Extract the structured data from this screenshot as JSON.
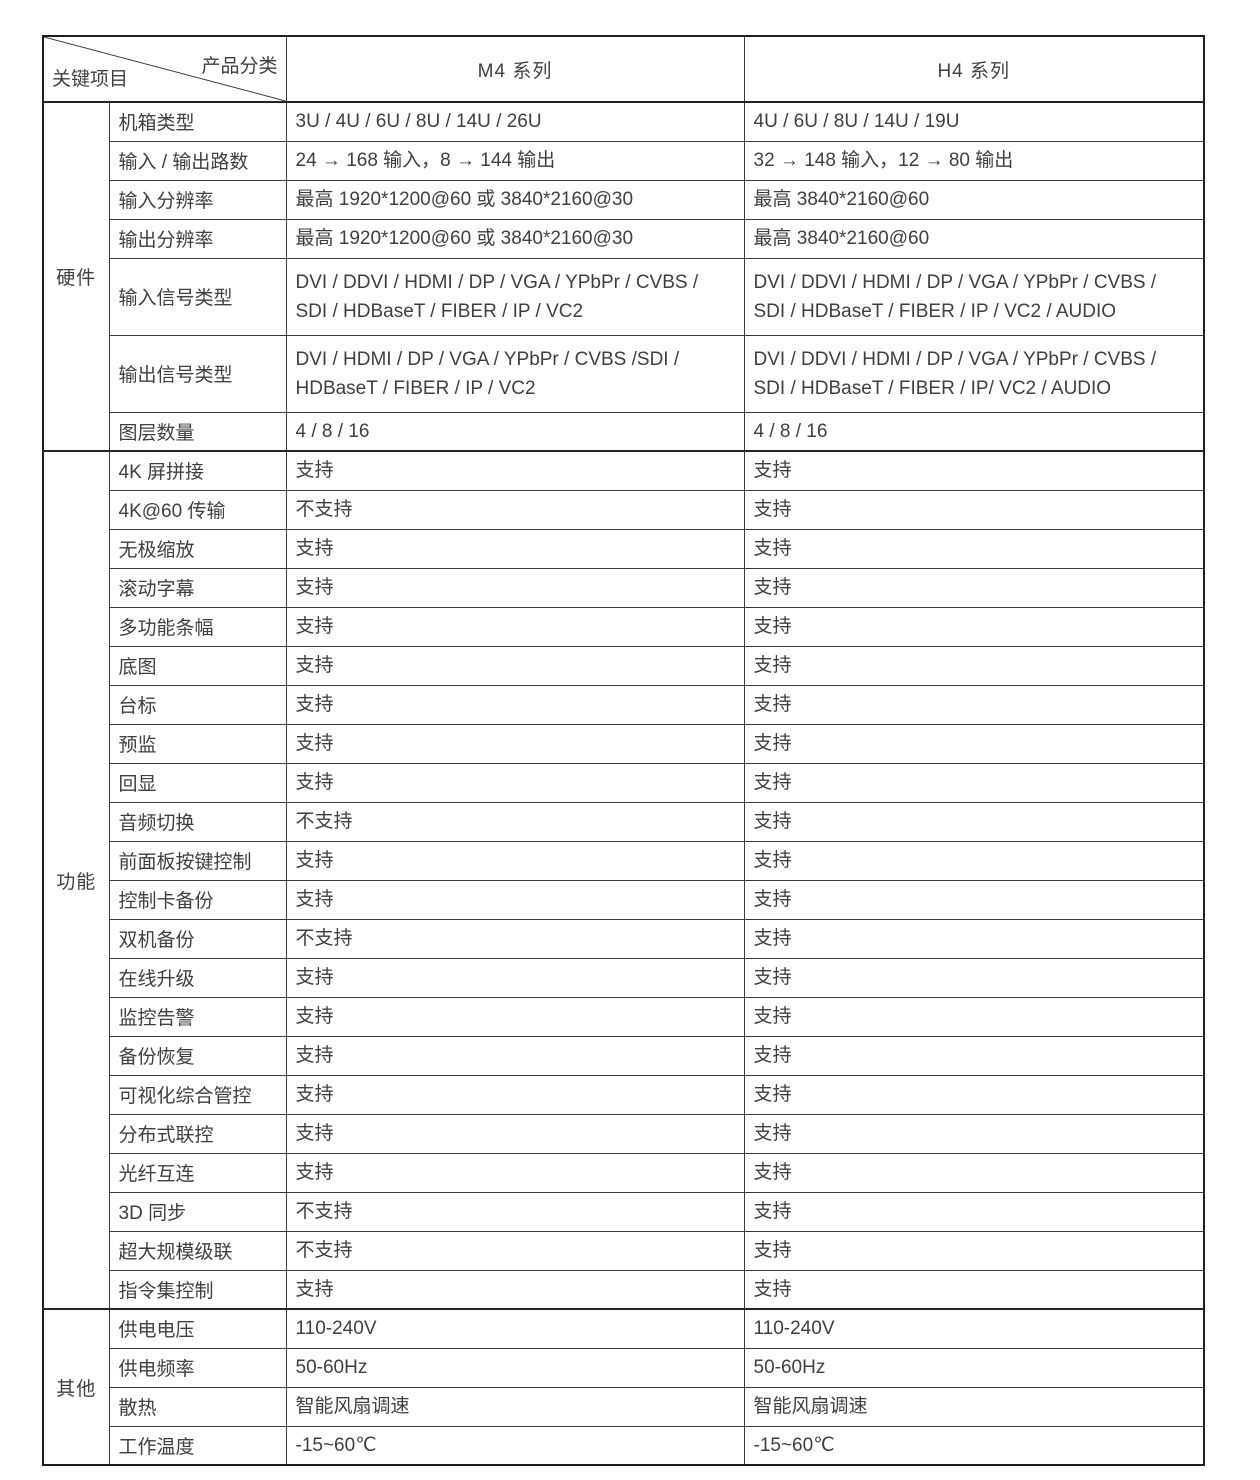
{
  "table": {
    "corner": {
      "top_label": "产品分类",
      "bottom_label": "关键项目"
    },
    "columns": [
      "M4 系列",
      "H4 系列"
    ],
    "sections": [
      {
        "label": "硬件",
        "rows": [
          {
            "item": "机箱类型",
            "m4": "3U / 4U / 6U / 8U / 14U / 26U",
            "h4": "4U / 6U / 8U / 14U / 19U"
          },
          {
            "item": "输入 / 输出路数",
            "m4": "24 → 168 输入，8 → 144 输出",
            "h4": "32 → 148 输入，12 → 80 输出"
          },
          {
            "item": "输入分辨率",
            "m4": "最高 1920*1200@60 或 3840*2160@30",
            "h4": "最高 3840*2160@60"
          },
          {
            "item": "输出分辨率",
            "m4": "最高 1920*1200@60 或 3840*2160@30",
            "h4": "最高 3840*2160@60"
          },
          {
            "item": "输入信号类型",
            "m4": "DVI / DDVI / HDMI / DP / VGA / YPbPr / CVBS / SDI / HDBaseT / FIBER / IP / VC2",
            "h4": "DVI / DDVI / HDMI / DP / VGA / YPbPr / CVBS / SDI / HDBaseT / FIBER / IP / VC2 / AUDIO"
          },
          {
            "item": "输出信号类型",
            "m4": "DVI / HDMI / DP / VGA / YPbPr / CVBS /SDI / HDBaseT / FIBER / IP / VC2",
            "h4": "DVI / DDVI / HDMI / DP / VGA / YPbPr / CVBS / SDI / HDBaseT / FIBER / IP/ VC2 / AUDIO"
          },
          {
            "item": "图层数量",
            "m4": "4 / 8 / 16",
            "h4": "4 / 8 / 16"
          }
        ]
      },
      {
        "label": "功能",
        "rows": [
          {
            "item": "4K 屏拼接",
            "m4": "支持",
            "h4": "支持"
          },
          {
            "item": "4K@60 传输",
            "m4": "不支持",
            "h4": "支持"
          },
          {
            "item": "无极缩放",
            "m4": "支持",
            "h4": "支持"
          },
          {
            "item": "滚动字幕",
            "m4": "支持",
            "h4": "支持"
          },
          {
            "item": "多功能条幅",
            "m4": "支持",
            "h4": "支持"
          },
          {
            "item": "底图",
            "m4": "支持",
            "h4": "支持"
          },
          {
            "item": "台标",
            "m4": "支持",
            "h4": "支持"
          },
          {
            "item": "预监",
            "m4": "支持",
            "h4": "支持"
          },
          {
            "item": "回显",
            "m4": "支持",
            "h4": "支持"
          },
          {
            "item": "音频切换",
            "m4": "不支持",
            "h4": "支持"
          },
          {
            "item": "前面板按键控制",
            "m4": "支持",
            "h4": "支持"
          },
          {
            "item": "控制卡备份",
            "m4": "支持",
            "h4": "支持"
          },
          {
            "item": "双机备份",
            "m4": "不支持",
            "h4": "支持"
          },
          {
            "item": "在线升级",
            "m4": "支持",
            "h4": "支持"
          },
          {
            "item": "监控告警",
            "m4": "支持",
            "h4": "支持"
          },
          {
            "item": "备份恢复",
            "m4": "支持",
            "h4": "支持"
          },
          {
            "item": "可视化综合管控",
            "m4": "支持",
            "h4": "支持"
          },
          {
            "item": "分布式联控",
            "m4": "支持",
            "h4": "支持"
          },
          {
            "item": "光纤互连",
            "m4": "支持",
            "h4": "支持"
          },
          {
            "item": "3D 同步",
            "m4": "不支持",
            "h4": "支持"
          },
          {
            "item": "超大规模级联",
            "m4": "不支持",
            "h4": "支持"
          },
          {
            "item": "指令集控制",
            "m4": "支持",
            "h4": "支持"
          }
        ]
      },
      {
        "label": "其他",
        "rows": [
          {
            "item": "供电电压",
            "m4": "110-240V",
            "h4": "110-240V"
          },
          {
            "item": "供电频率",
            "m4": "50-60Hz",
            "h4": "50-60Hz"
          },
          {
            "item": "散热",
            "m4": "智能风扇调速",
            "h4": "智能风扇调速"
          },
          {
            "item": "工作温度",
            "m4": "-15~60℃",
            "h4": "-15~60℃"
          }
        ]
      }
    ]
  }
}
